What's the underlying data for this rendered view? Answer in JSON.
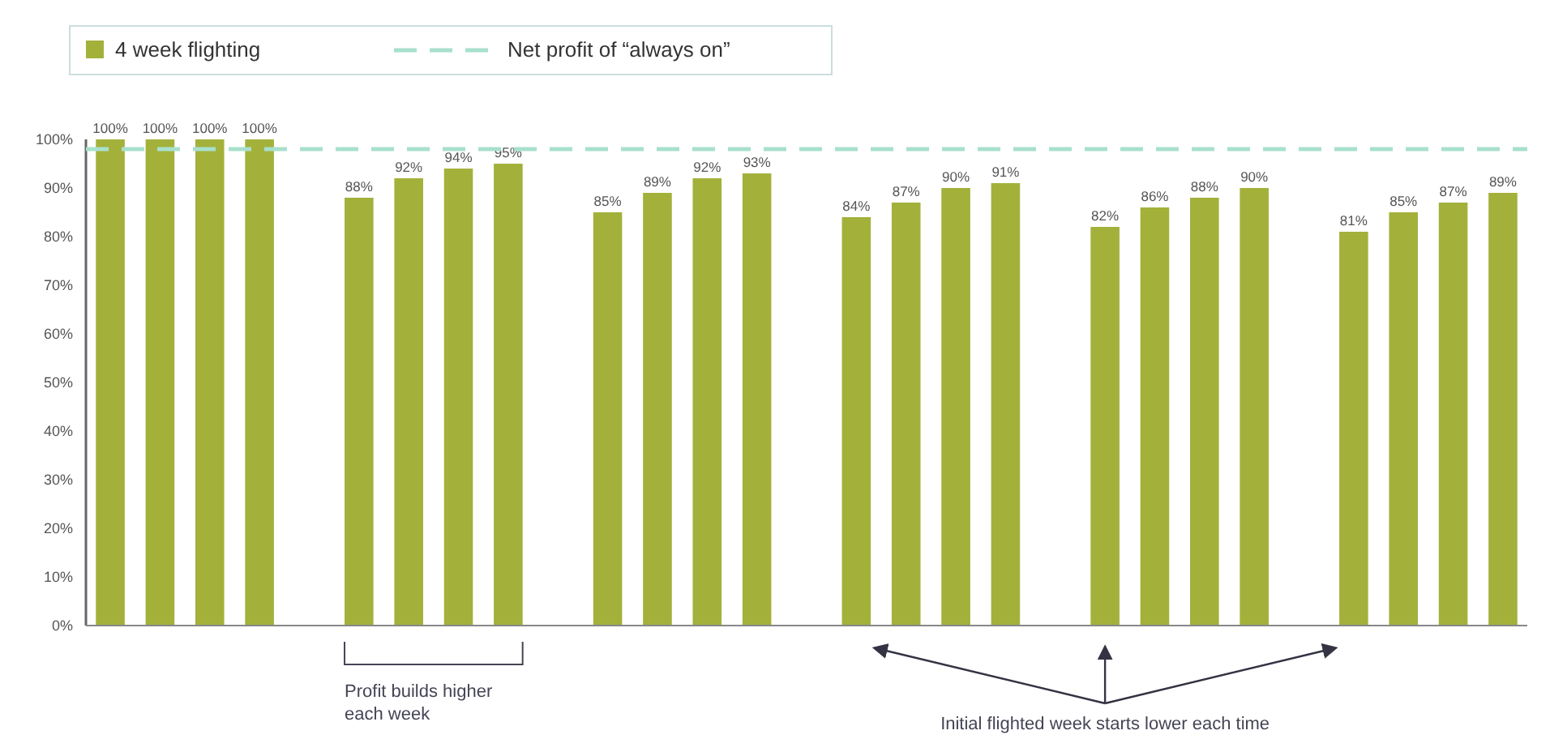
{
  "chart_data": {
    "type": "bar",
    "categories": [
      null,
      null,
      null,
      null,
      null,
      null,
      null,
      null,
      null,
      null,
      null,
      null,
      null,
      null,
      null,
      null,
      null,
      null,
      null,
      null,
      null,
      null,
      null,
      null,
      null,
      null,
      null,
      null,
      null
    ],
    "series": [
      {
        "name": "4 week flighting",
        "color": "#a3b13b",
        "values": [
          100,
          100,
          100,
          100,
          null,
          88,
          92,
          94,
          95,
          null,
          85,
          89,
          92,
          93,
          null,
          84,
          87,
          90,
          91,
          null,
          82,
          86,
          88,
          90,
          null,
          81,
          85,
          87,
          89
        ]
      }
    ],
    "value_labels": [
      "100%",
      "100%",
      "100%",
      "100%",
      null,
      "88%",
      "92%",
      "94%",
      "95%",
      null,
      "85%",
      "89%",
      "92%",
      "93%",
      null,
      "84%",
      "87%",
      "90%",
      "91%",
      null,
      "82%",
      "86%",
      "88%",
      "90%",
      null,
      "81%",
      "85%",
      "87%",
      "89%"
    ],
    "ylim": [
      0,
      100
    ],
    "yticks": [
      {
        "value": 0,
        "label": "0%"
      },
      {
        "value": 10,
        "label": "10%"
      },
      {
        "value": 20,
        "label": "20%"
      },
      {
        "value": 30,
        "label": "30%"
      },
      {
        "value": 40,
        "label": "40%"
      },
      {
        "value": 50,
        "label": "50%"
      },
      {
        "value": 60,
        "label": "60%"
      },
      {
        "value": 70,
        "label": "70%"
      },
      {
        "value": 80,
        "label": "80%"
      },
      {
        "value": 90,
        "label": "90%"
      },
      {
        "value": 100,
        "label": "100%"
      }
    ],
    "ref_lines": [
      {
        "axis": "y",
        "value": 98,
        "label": "Net profit of “always on”",
        "color": "#a8e0cc",
        "line_style": "dashed"
      }
    ],
    "legend": "top left",
    "grid": false,
    "annotations": [
      "Profit builds higher each week",
      "Initial flighted week starts lower each time"
    ]
  }
}
